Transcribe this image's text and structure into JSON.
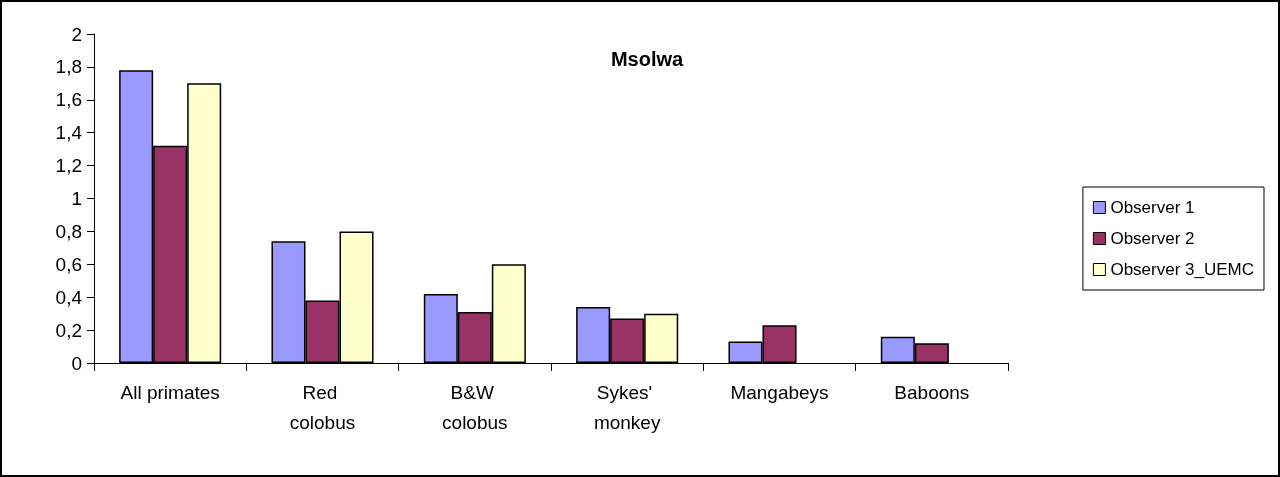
{
  "chart_data": {
    "type": "bar",
    "title": "Msolwa",
    "categories": [
      "All primates",
      "Red colobus",
      "B&W colobus",
      "Sykes' monkey",
      "Mangabeys",
      "Baboons"
    ],
    "series": [
      {
        "name": "Observer 1",
        "color": "#9999ff",
        "values": [
          1.78,
          0.74,
          0.42,
          0.34,
          0.13,
          0.16
        ]
      },
      {
        "name": "Observer 2",
        "color": "#993366",
        "values": [
          1.32,
          0.38,
          0.31,
          0.27,
          0.23,
          0.12
        ]
      },
      {
        "name": "Observer 3_UEMC",
        "color": "#ffffcc",
        "values": [
          1.7,
          0.8,
          0.6,
          0.3,
          null,
          null
        ]
      }
    ],
    "ylim": [
      0,
      2
    ],
    "yticks": [
      0,
      {
        "value": 0.2,
        "label": "0,2"
      },
      {
        "value": 0.4,
        "label": "0,4"
      },
      {
        "value": 0.6,
        "label": "0,6"
      },
      {
        "value": 0.8,
        "label": "0,8"
      },
      1,
      {
        "value": 1.2,
        "label": "1,2"
      },
      {
        "value": 1.4,
        "label": "1,4"
      },
      {
        "value": 1.6,
        "label": "1,6"
      },
      {
        "value": 1.8,
        "label": "1,8"
      },
      2
    ],
    "grid": false,
    "legend": "right"
  }
}
